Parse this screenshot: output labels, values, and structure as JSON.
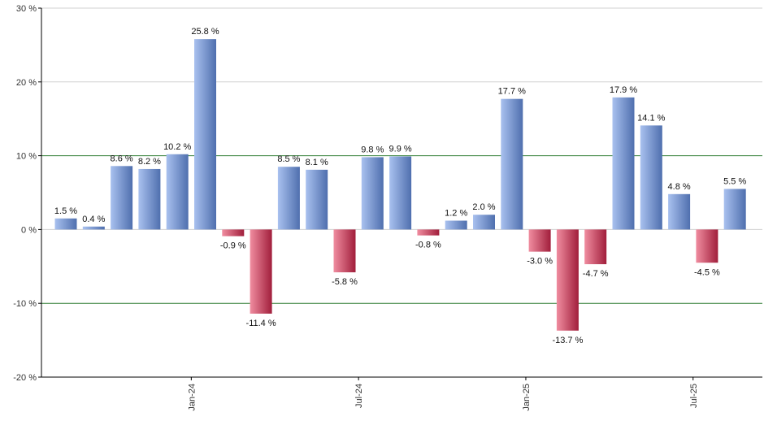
{
  "chart_data": {
    "type": "bar",
    "x_tick_labels": [
      "Jan-24",
      "Jul-24",
      "Jan-25",
      "Jul-25"
    ],
    "y_ticks": [
      -20,
      -10,
      0,
      10,
      20,
      30
    ],
    "y_tick_suffix": " %",
    "ylim": [
      -20,
      30
    ],
    "values": [
      1.5,
      0.4,
      8.6,
      8.2,
      10.2,
      25.8,
      -0.9,
      -11.4,
      8.5,
      8.1,
      -5.8,
      9.8,
      9.9,
      -0.8,
      1.2,
      2.0,
      17.7,
      -3.0,
      -13.7,
      -4.7,
      17.9,
      14.1,
      4.8,
      -4.5,
      5.5
    ],
    "data_labels": [
      "1.5 %",
      "0.4 %",
      "8.6 %",
      "8.2 %",
      "10.2 %",
      "25.8 %",
      "-0.9 %",
      "-11.4 %",
      "8.5 %",
      "8.1 %",
      "-5.8 %",
      "9.8 %",
      "9.9 %",
      "-0.8 %",
      "1.2 %",
      "2.0 %",
      "17.7 %",
      "-3.0 %",
      "-13.7 %",
      "-4.7 %",
      "17.9 %",
      "14.1 %",
      "4.8 %",
      "-4.5 %",
      "5.5 %"
    ],
    "x_tick_positions_index": [
      4.5,
      10.5,
      16.5,
      22.5
    ],
    "highlight_lines": [
      10,
      -10
    ],
    "grid": true,
    "legend": "none",
    "colors": {
      "positive_light": "#a9c1ef",
      "positive_dark": "#4f6fae",
      "negative_light": "#f08da0",
      "negative_dark": "#a11e3b",
      "highlight_line": "#2e7d32",
      "grid_line": "#d0d0d0",
      "axis": "#000000"
    }
  }
}
